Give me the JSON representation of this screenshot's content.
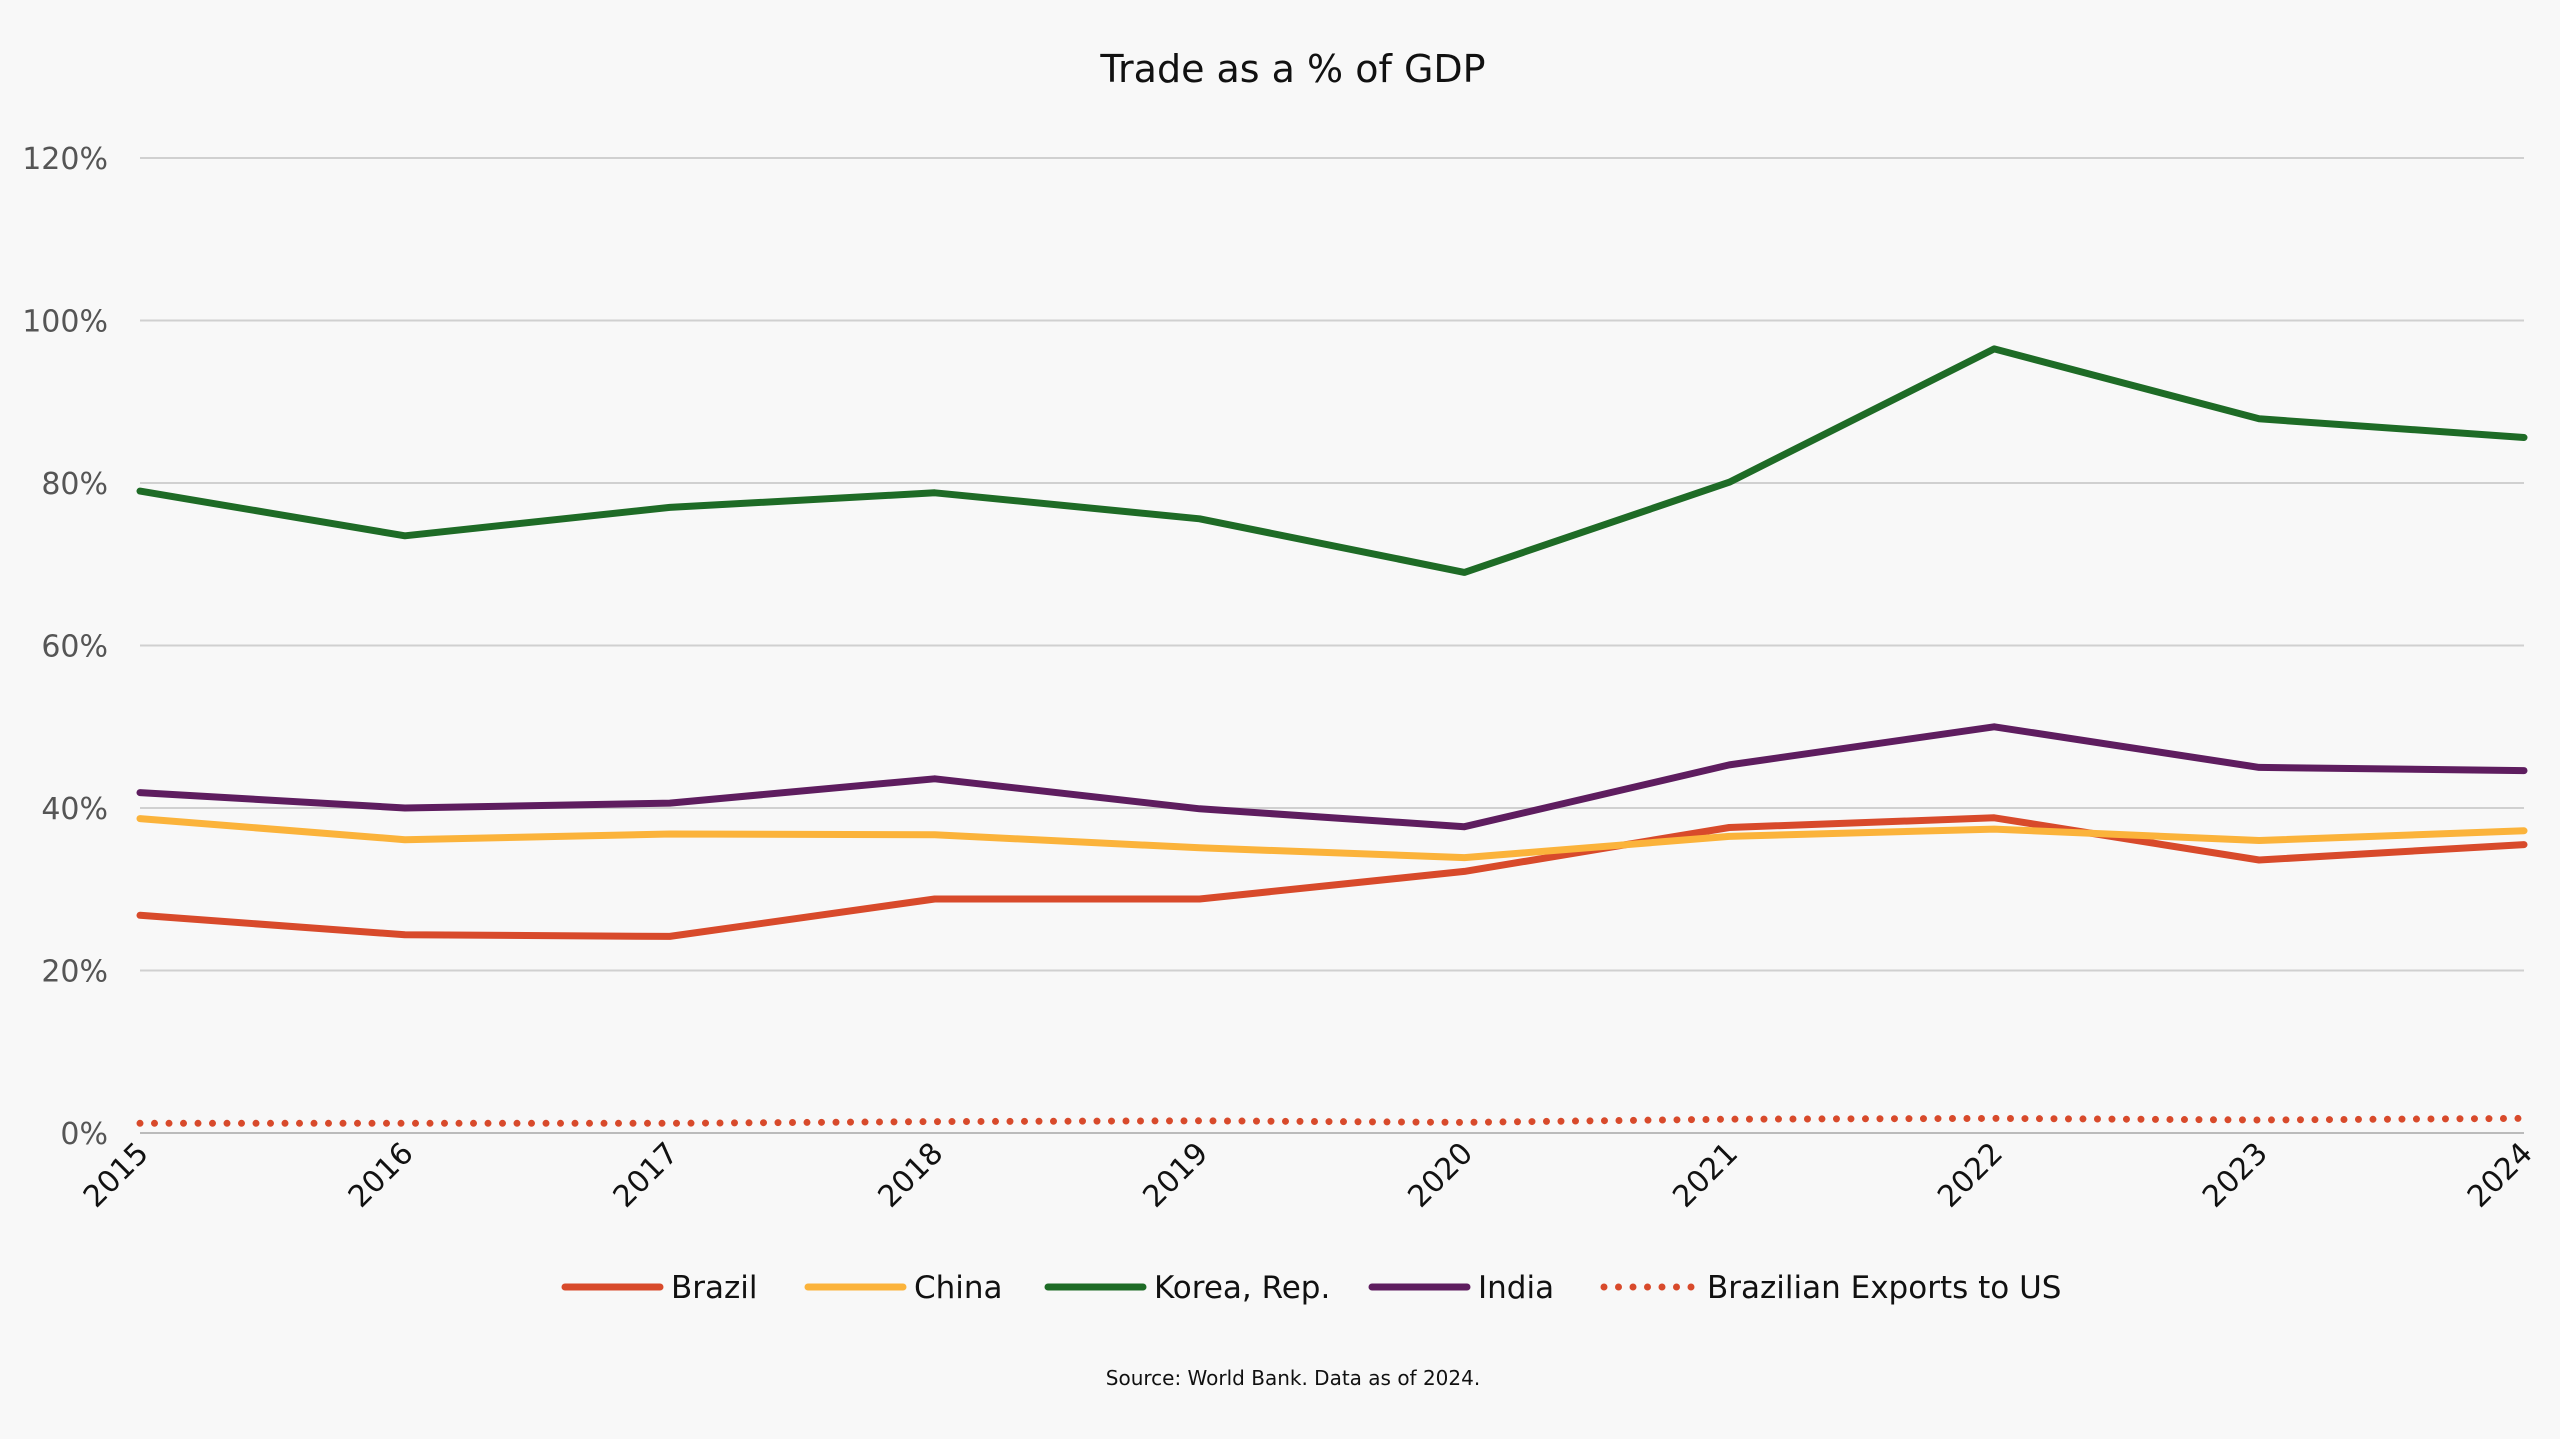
{
  "chart_data": {
    "type": "line",
    "title": "Trade as a % of GDP",
    "source": "Source: World Bank. Data as of 2024.",
    "x": [
      "2015",
      "2016",
      "2017",
      "2018",
      "2019",
      "2020",
      "2021",
      "2022",
      "2023",
      "2024"
    ],
    "ylim": [
      0,
      120
    ],
    "yticks": [
      0,
      20,
      40,
      60,
      80,
      100,
      120
    ],
    "ytick_labels": [
      "0%",
      "20%",
      "40%",
      "60%",
      "80%",
      "100%",
      "120%"
    ],
    "grid": true,
    "legend_position": "bottom",
    "series": [
      {
        "name": "Brazil",
        "color": "#d84a2b",
        "style": "solid",
        "values": [
          26.8,
          24.4,
          24.2,
          28.8,
          28.8,
          32.2,
          37.6,
          38.8,
          33.6,
          35.5
        ]
      },
      {
        "name": "China",
        "color": "#fbb33b",
        "style": "solid",
        "values": [
          38.7,
          36.1,
          36.8,
          36.7,
          35.1,
          33.9,
          36.5,
          37.4,
          36.0,
          37.2
        ]
      },
      {
        "name": "Korea, Rep.",
        "color": "#1e6b26",
        "style": "solid",
        "values": [
          79.0,
          73.5,
          77.0,
          78.8,
          75.6,
          69.0,
          80.1,
          96.5,
          87.9,
          85.6
        ]
      },
      {
        "name": "India",
        "color": "#5e1d5f",
        "style": "solid",
        "values": [
          41.9,
          40.0,
          40.6,
          43.6,
          39.9,
          37.7,
          45.3,
          50.0,
          45.0,
          44.6
        ]
      },
      {
        "name": "Brazilian Exports to US",
        "color": "#d84a2b",
        "style": "dotted",
        "values": [
          1.2,
          1.2,
          1.2,
          1.4,
          1.5,
          1.3,
          1.7,
          1.8,
          1.6,
          1.8
        ]
      }
    ]
  }
}
